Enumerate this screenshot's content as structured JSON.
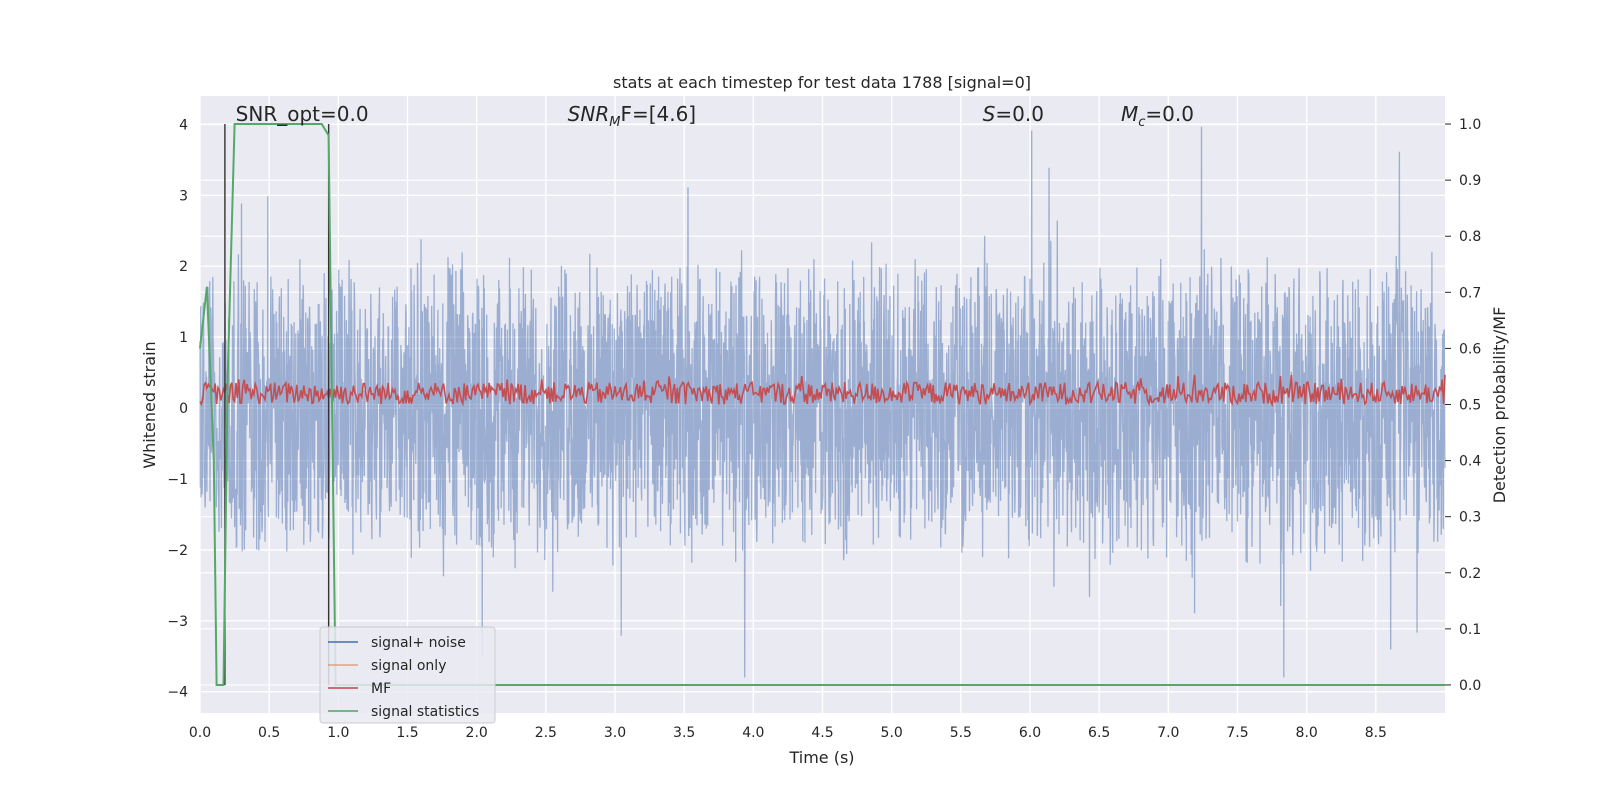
{
  "chart_data": {
    "type": "line",
    "title": "stats at each timestep for test data 1788 [signal=0]",
    "xlabel": "Time (s)",
    "ylabel": "Whitened strain",
    "y2label": "Detection probability/MF",
    "xlim": [
      0.0,
      9.0
    ],
    "ylim": [
      -4.3,
      4.4
    ],
    "y2lim": [
      -0.05,
      1.05
    ],
    "x_ticks": [
      "0.0",
      "0.5",
      "1.0",
      "1.5",
      "2.0",
      "2.5",
      "3.0",
      "3.5",
      "4.0",
      "4.5",
      "5.0",
      "5.5",
      "6.0",
      "6.5",
      "7.0",
      "7.5",
      "8.0",
      "8.5"
    ],
    "x_tick_values": [
      0.0,
      0.5,
      1.0,
      1.5,
      2.0,
      2.5,
      3.0,
      3.5,
      4.0,
      4.5,
      5.0,
      5.5,
      6.0,
      6.5,
      7.0,
      7.5,
      8.0,
      8.5
    ],
    "y_ticks": [
      "−4",
      "−3",
      "−2",
      "−1",
      "0",
      "1",
      "2",
      "3",
      "4"
    ],
    "y_tick_values": [
      -4,
      -3,
      -2,
      -1,
      0,
      1,
      2,
      3,
      4
    ],
    "y2_ticks": [
      "0.0",
      "0.1",
      "0.2",
      "0.3",
      "0.4",
      "0.5",
      "0.6",
      "0.7",
      "0.8",
      "0.9",
      "1.0"
    ],
    "y2_tick_values": [
      0.0,
      0.1,
      0.2,
      0.3,
      0.4,
      0.5,
      0.6,
      0.7,
      0.8,
      0.9,
      1.0
    ],
    "grid": true,
    "legend_position": "lower-left",
    "annotations": [
      {
        "text": "SNR_opt=0.0",
        "x": 0.2
      },
      {
        "text": "SNR_MF=[4.6]",
        "x": 2.6
      },
      {
        "text": "S=0.0",
        "x": 5.6
      },
      {
        "text": "M_c=0.0",
        "x": 6.6
      }
    ],
    "vlines": [
      0.18,
      0.93
    ],
    "series": [
      {
        "name": "signal+ noise",
        "color": "#4c72b0",
        "axis": "left",
        "noise_amplitude": 3.5,
        "sample_rate_hz": 400
      },
      {
        "name": "signal only",
        "color": "#dd8452",
        "axis": "left"
      },
      {
        "name": "MF",
        "color": "#c44e52",
        "axis": "right",
        "baseline": 0.5,
        "peak": 0.56
      },
      {
        "name": "signal statistics",
        "color": "#55a868",
        "axis": "right",
        "x": [
          0.0,
          0.05,
          0.1,
          0.12,
          0.17,
          0.2,
          0.25,
          0.3,
          0.55,
          0.88,
          0.93,
          0.98,
          1.05,
          9.0
        ],
        "y": [
          0.6,
          0.71,
          0.4,
          0.0,
          0.0,
          0.55,
          1.0,
          1.0,
          1.0,
          1.0,
          0.98,
          0.0,
          0.0,
          0.0
        ]
      }
    ]
  }
}
